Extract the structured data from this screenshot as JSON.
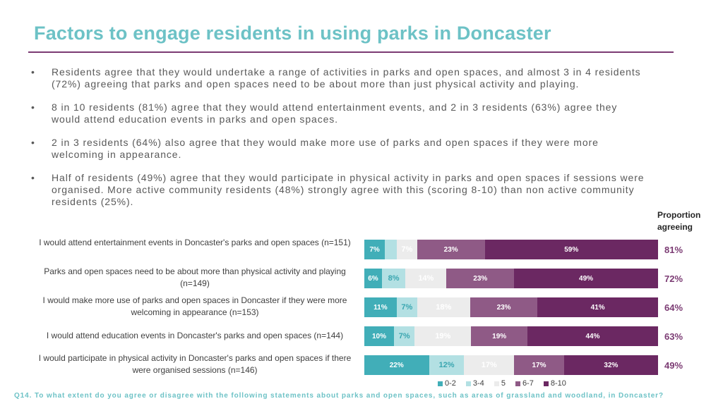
{
  "title": "Factors to engage residents in using parks in Doncaster",
  "bullets": [
    "Residents agree that they would undertake a range of activities in parks and open spaces, and almost 3 in 4 residents (72%) agreeing that parks and open spaces need to be about more than just physical activity and playing.",
    "8 in 10 residents (81%) agree that they would attend entertainment events, and 2 in 3 residents (63%) agree they would attend education events in parks and open spaces.",
    "2 in 3 residents (64%) also agree that they would make more use of parks and open spaces if they were more welcoming in appearance.",
    "Half of residents (49%) agree that they would participate in physical activity in parks and open spaces if sessions were organised. More active community residents (48%) strongly agree with this (scoring 8-10) than non active community residents (25%)."
  ],
  "bullet_symbol": "•",
  "proportion_header": "Proportion agreeing",
  "footer": "Q14. To what extent do you agree or disagree with the following statements about parks and open spaces, such as areas of grassland and woodland, in Doncaster?",
  "colors": {
    "title": "#6dc2c6",
    "s0_2": "#41aeb8",
    "s3_4": "#b3e0e3",
    "s5": "#ececec",
    "s6_7": "#8f5a86",
    "s8_10": "#6b2862",
    "proportion": "#7b3b73"
  },
  "chart_data": {
    "type": "bar",
    "orientation": "horizontal",
    "stacked": true,
    "categories": [
      "I would attend entertainment events in Doncaster's parks and open spaces (n=151)",
      "Parks and open spaces need to be about more than physical activity and playing (n=149)",
      "I would make more use of parks and open spaces in Doncaster if they were more welcoming in appearance (n=153)",
      "I would attend education events in Doncaster's parks and open spaces (n=144)",
      "I would participate in physical activity in Doncaster's parks and open spaces if there were organised sessions (n=146)"
    ],
    "series": [
      {
        "name": "0-2",
        "values": [
          7,
          6,
          11,
          10,
          22
        ],
        "labels": [
          "7%",
          "6%",
          "11%",
          "10%",
          "22%"
        ]
      },
      {
        "name": "3-4",
        "values": [
          4,
          8,
          7,
          7,
          12
        ],
        "labels": [
          "",
          "8%",
          "7%",
          "7%",
          "12%"
        ]
      },
      {
        "name": "5",
        "values": [
          7,
          14,
          18,
          19,
          17
        ],
        "labels": [
          "7%",
          "14%",
          "18%",
          "19%",
          "17%"
        ]
      },
      {
        "name": "6-7",
        "values": [
          23,
          23,
          23,
          19,
          17
        ],
        "labels": [
          "23%",
          "23%",
          "23%",
          "19%",
          "17%"
        ]
      },
      {
        "name": "8-10",
        "values": [
          59,
          49,
          41,
          44,
          32
        ],
        "labels": [
          "59%",
          "49%",
          "41%",
          "44%",
          "32%"
        ]
      }
    ],
    "proportion_agreeing": [
      "81%",
      "72%",
      "64%",
      "63%",
      "49%"
    ],
    "xlim": [
      0,
      100
    ],
    "legend": "bottom"
  }
}
